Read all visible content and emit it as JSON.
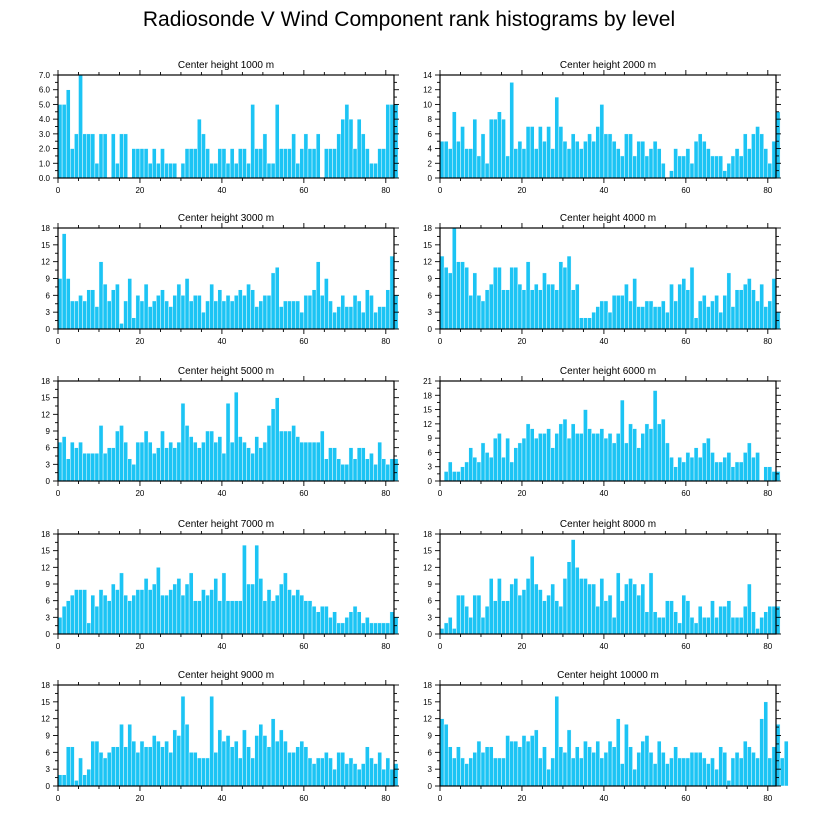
{
  "figure": {
    "title": "Radiosonde V Wind Component rank histograms by level"
  },
  "colors": {
    "bar": "#1cc4f4",
    "axis": "#000000",
    "background": "#ffffff"
  },
  "chart_data": [
    {
      "type": "bar",
      "title": "Center height 1000 m",
      "ylim": [
        0,
        7
      ],
      "yticks": [
        "0.0",
        "1.0",
        "2.0",
        "3.0",
        "4.0",
        "5.0",
        "6.0",
        "7.0"
      ],
      "yminor": 0.5,
      "xlim": [
        0,
        82
      ],
      "xticks": [
        "0",
        "20",
        "40",
        "60",
        "80"
      ],
      "values": [
        5,
        5,
        6,
        2,
        3,
        7,
        3,
        3,
        3,
        1,
        3,
        3,
        0,
        3,
        1,
        3,
        3,
        0,
        2,
        2,
        2,
        2,
        1,
        2,
        1,
        2,
        1,
        1,
        1,
        0,
        1,
        2,
        2,
        2,
        4,
        3,
        2,
        1,
        1,
        2,
        2,
        1,
        2,
        1,
        2,
        2,
        1,
        5,
        2,
        2,
        3,
        1,
        1,
        5,
        2,
        2,
        2,
        3,
        1,
        2,
        3,
        2,
        2,
        3,
        0,
        2,
        2,
        2,
        3,
        4,
        5,
        4,
        2,
        4,
        3,
        2,
        1,
        1,
        2,
        2,
        5,
        5,
        5
      ]
    },
    {
      "type": "bar",
      "title": "Center height 2000 m",
      "ylim": [
        0,
        14
      ],
      "yticks": [
        "0",
        "2",
        "4",
        "6",
        "8",
        "10",
        "12",
        "14"
      ],
      "yminor": 1,
      "xlim": [
        0,
        82
      ],
      "xticks": [
        "0",
        "20",
        "40",
        "60",
        "80"
      ],
      "values": [
        5,
        5,
        4,
        9,
        5,
        7,
        4,
        4,
        8,
        3,
        6,
        2,
        8,
        8,
        9,
        8,
        3,
        13,
        4,
        5,
        4,
        7,
        7,
        4,
        7,
        5,
        7,
        4,
        11,
        7,
        5,
        4,
        6,
        5,
        4,
        5,
        6,
        5,
        7,
        10,
        6,
        6,
        5,
        4,
        3,
        6,
        6,
        3,
        5,
        5,
        3,
        4,
        5,
        4,
        2,
        0,
        1,
        4,
        3,
        3,
        4,
        2,
        5,
        6,
        5,
        4,
        3,
        3,
        3,
        1,
        2,
        3,
        4,
        3,
        6,
        4,
        6,
        7,
        6,
        4,
        2,
        5,
        9
      ]
    },
    {
      "type": "bar",
      "title": "Center height 3000 m",
      "ylim": [
        0,
        18
      ],
      "yticks": [
        "0",
        "3",
        "6",
        "9",
        "12",
        "15",
        "18"
      ],
      "yminor": 1.5,
      "xlim": [
        0,
        82
      ],
      "xticks": [
        "0",
        "20",
        "40",
        "60",
        "80"
      ],
      "values": [
        9,
        17,
        9,
        5,
        5,
        6,
        5,
        7,
        7,
        4,
        12,
        8,
        5,
        7,
        8,
        1,
        5,
        9,
        2,
        6,
        5,
        8,
        4,
        5,
        6,
        7,
        5,
        4,
        6,
        8,
        6,
        9,
        5,
        6,
        6,
        3,
        5,
        8,
        5,
        7,
        5,
        6,
        5,
        6,
        7,
        6,
        8,
        7,
        4,
        5,
        6,
        6,
        10,
        11,
        4,
        5,
        5,
        5,
        5,
        3,
        6,
        6,
        7,
        12,
        6,
        9,
        5,
        3,
        4,
        6,
        4,
        4,
        6,
        5,
        3,
        7,
        6,
        3,
        4,
        4,
        7,
        13,
        6
      ]
    },
    {
      "type": "bar",
      "title": "Center height 4000 m",
      "ylim": [
        0,
        18
      ],
      "yticks": [
        "0",
        "3",
        "6",
        "9",
        "12",
        "15",
        "18"
      ],
      "yminor": 1.5,
      "xlim": [
        0,
        82
      ],
      "xticks": [
        "0",
        "20",
        "40",
        "60",
        "80"
      ],
      "values": [
        13,
        11,
        10,
        18,
        12,
        12,
        11,
        6,
        10,
        6,
        5,
        7,
        8,
        11,
        11,
        7,
        7,
        11,
        11,
        8,
        7,
        12,
        7,
        8,
        7,
        10,
        8,
        8,
        7,
        12,
        11,
        13,
        7,
        8,
        2,
        2,
        2,
        3,
        4,
        5,
        5,
        3,
        6,
        6,
        6,
        8,
        5,
        9,
        4,
        4,
        5,
        5,
        4,
        4,
        5,
        3,
        8,
        5,
        8,
        9,
        7,
        11,
        2,
        5,
        6,
        4,
        5,
        6,
        3,
        6,
        10,
        4,
        7,
        7,
        8,
        9,
        7,
        5,
        8,
        4,
        5,
        9,
        3
      ]
    },
    {
      "type": "bar",
      "title": "Center height 5000 m",
      "ylim": [
        0,
        18
      ],
      "yticks": [
        "0",
        "3",
        "6",
        "9",
        "12",
        "15",
        "18"
      ],
      "yminor": 1.5,
      "xlim": [
        0,
        82
      ],
      "xticks": [
        "0",
        "20",
        "40",
        "60",
        "80"
      ],
      "values": [
        7,
        8,
        4,
        7,
        6,
        7,
        5,
        5,
        5,
        5,
        10,
        5,
        6,
        6,
        9,
        10,
        7,
        4,
        3,
        7,
        7,
        9,
        7,
        5,
        6,
        9,
        6,
        7,
        6,
        7,
        14,
        10,
        8,
        7,
        6,
        7,
        9,
        9,
        7,
        8,
        5,
        14,
        7,
        16,
        8,
        7,
        6,
        5,
        8,
        6,
        7,
        10,
        13,
        15,
        9,
        9,
        9,
        10,
        8,
        7,
        7,
        7,
        7,
        7,
        9,
        4,
        6,
        6,
        4,
        3,
        3,
        6,
        4,
        6,
        6,
        4,
        5,
        3,
        7,
        4,
        3,
        4,
        4
      ]
    },
    {
      "type": "bar",
      "title": "Center height 6000 m",
      "ylim": [
        0,
        21
      ],
      "yticks": [
        "0",
        "3",
        "6",
        "9",
        "12",
        "15",
        "18",
        "21"
      ],
      "yminor": 1.5,
      "xlim": [
        0,
        82
      ],
      "xticks": [
        "0",
        "20",
        "40",
        "60",
        "80"
      ],
      "values": [
        0,
        2,
        4,
        2,
        2,
        3,
        4,
        7,
        5,
        4,
        8,
        6,
        5,
        9,
        10,
        5,
        9,
        4,
        7,
        8,
        9,
        12,
        11,
        9,
        10,
        10,
        11,
        7,
        10,
        12,
        13,
        9,
        12,
        10,
        10,
        15,
        11,
        10,
        10,
        11,
        9,
        10,
        8,
        10,
        17,
        8,
        12,
        11,
        7,
        10,
        12,
        11,
        19,
        12,
        13,
        8,
        5,
        3,
        5,
        4,
        6,
        5,
        7,
        5,
        8,
        9,
        6,
        4,
        4,
        5,
        6,
        3,
        4,
        4,
        6,
        8,
        5,
        6,
        0,
        3,
        3,
        2,
        2
      ]
    },
    {
      "type": "bar",
      "title": "Center height 7000 m",
      "ylim": [
        0,
        18
      ],
      "yticks": [
        "0",
        "3",
        "6",
        "9",
        "12",
        "15",
        "18"
      ],
      "yminor": 1.5,
      "xlim": [
        0,
        82
      ],
      "xticks": [
        "0",
        "20",
        "40",
        "60",
        "80"
      ],
      "values": [
        3,
        5,
        6,
        7,
        8,
        8,
        8,
        2,
        7,
        5,
        8,
        7,
        6,
        9,
        8,
        11,
        7,
        6,
        7,
        8,
        8,
        10,
        8,
        9,
        12,
        7,
        7,
        8,
        9,
        10,
        7,
        9,
        11,
        6,
        6,
        8,
        7,
        8,
        10,
        6,
        11,
        6,
        6,
        6,
        6,
        16,
        9,
        9,
        16,
        10,
        6,
        8,
        6,
        7,
        9,
        11,
        8,
        7,
        8,
        7,
        6,
        6,
        5,
        4,
        5,
        5,
        3,
        4,
        2,
        2,
        3,
        4,
        5,
        4,
        2,
        3,
        2,
        2,
        2,
        2,
        2,
        4,
        3
      ]
    },
    {
      "type": "bar",
      "title": "Center height 8000 m",
      "ylim": [
        0,
        18
      ],
      "yticks": [
        "0",
        "3",
        "6",
        "9",
        "12",
        "15",
        "18"
      ],
      "yminor": 1.5,
      "xlim": [
        0,
        82
      ],
      "xticks": [
        "0",
        "20",
        "40",
        "60",
        "80"
      ],
      "values": [
        1,
        2,
        3,
        1,
        7,
        7,
        5,
        3,
        7,
        7,
        3,
        5,
        10,
        6,
        10,
        6,
        6,
        9,
        10,
        7,
        8,
        10,
        14,
        9,
        8,
        6,
        7,
        9,
        6,
        5,
        10,
        13,
        17,
        12,
        10,
        10,
        9,
        9,
        5,
        10,
        6,
        7,
        3,
        11,
        6,
        9,
        10,
        9,
        7,
        9,
        4,
        11,
        4,
        3,
        3,
        6,
        6,
        4,
        2,
        7,
        6,
        3,
        2,
        5,
        3,
        3,
        6,
        3,
        5,
        5,
        6,
        3,
        3,
        3,
        5,
        9,
        4,
        1,
        3,
        4,
        5,
        5,
        5
      ]
    },
    {
      "type": "bar",
      "title": "Center height 9000 m",
      "ylim": [
        0,
        18
      ],
      "yticks": [
        "0",
        "3",
        "6",
        "9",
        "12",
        "15",
        "18"
      ],
      "yminor": 1.5,
      "xlim": [
        0,
        82
      ],
      "xticks": [
        "0",
        "20",
        "40",
        "60",
        "80"
      ],
      "values": [
        2,
        2,
        7,
        7,
        1,
        5,
        2,
        3,
        8,
        8,
        6,
        5,
        6,
        7,
        7,
        11,
        7,
        11,
        8,
        6,
        8,
        7,
        7,
        9,
        8,
        7,
        8,
        6,
        10,
        9,
        16,
        11,
        6,
        6,
        5,
        5,
        5,
        16,
        6,
        10,
        8,
        9,
        7,
        8,
        5,
        10,
        7,
        5,
        9,
        11,
        9,
        7,
        12,
        8,
        10,
        8,
        6,
        6,
        7,
        8,
        7,
        5,
        4,
        5,
        5,
        6,
        5,
        3,
        6,
        6,
        4,
        5,
        4,
        3,
        4,
        7,
        5,
        4,
        6,
        3,
        5,
        3,
        4
      ]
    },
    {
      "type": "bar",
      "title": "Center height 10000 m",
      "ylim": [
        0,
        18
      ],
      "yticks": [
        "0",
        "3",
        "6",
        "9",
        "12",
        "15",
        "18"
      ],
      "yminor": 1.5,
      "xlim": [
        0,
        82
      ],
      "xticks": [
        "0",
        "20",
        "40",
        "60",
        "80"
      ],
      "values": [
        12,
        11,
        7,
        5,
        7,
        5,
        4,
        5,
        6,
        8,
        6,
        7,
        7,
        5,
        5,
        5,
        9,
        8,
        8,
        7,
        9,
        8,
        9,
        10,
        5,
        7,
        3,
        5,
        16,
        7,
        6,
        10,
        5,
        7,
        5,
        8,
        7,
        6,
        8,
        5,
        6,
        8,
        7,
        12,
        4,
        11,
        7,
        3,
        6,
        8,
        9,
        6,
        4,
        8,
        6,
        4,
        5,
        7,
        5,
        5,
        5,
        6,
        6,
        6,
        5,
        4,
        5,
        3,
        7,
        6,
        1,
        5,
        6,
        5,
        8,
        7,
        6,
        5,
        12,
        15,
        5,
        7,
        11,
        5,
        8
      ]
    }
  ]
}
